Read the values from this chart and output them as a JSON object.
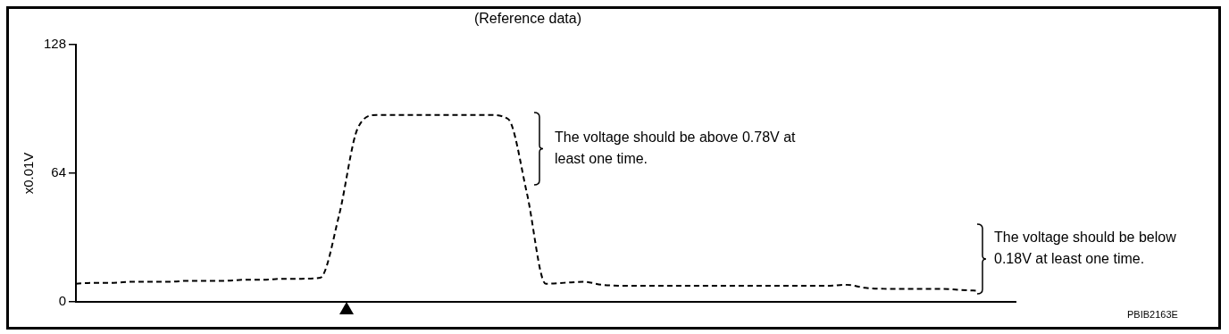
{
  "chart_data": {
    "type": "line",
    "title": "(Reference data)",
    "ylabel": "x0.01V",
    "categories": [
      null,
      null,
      null,
      null,
      null,
      null,
      null,
      null,
      null,
      null,
      null,
      null,
      null,
      null,
      null,
      null,
      null,
      null,
      null,
      null,
      null,
      null,
      null,
      null,
      null,
      null,
      null,
      null,
      null,
      null,
      null,
      null,
      null,
      null,
      null,
      null,
      null,
      null,
      null,
      null,
      null,
      null,
      null,
      null,
      null,
      null,
      null,
      null,
      null,
      null,
      null
    ],
    "series": [
      {
        "color": "#000000",
        "values": [
          9,
          9.5,
          9.5,
          10,
          10,
          10,
          10.5,
          10.5,
          10.5,
          11,
          11,
          11.5,
          11.5,
          12,
          43,
          86.5,
          93,
          93,
          93,
          93,
          93,
          93,
          93,
          91,
          54,
          9,
          9.5,
          10,
          8.5,
          8,
          8,
          8,
          8,
          8,
          8,
          8,
          8,
          8,
          8,
          8,
          8,
          8.5,
          7,
          6.5,
          6.5,
          6.5,
          6.5,
          6,
          5.5,
          null,
          null
        ]
      }
    ],
    "ylim": [
      0,
      128
    ],
    "yticks": [
      0,
      64,
      128
    ],
    "grid": false,
    "legend": false,
    "tick_labels": "y",
    "marker": "none",
    "line_style": "dashed",
    "annotations": [
      "The voltage should be above 0.78V at least one time.",
      "The voltage should be below 0.18V at least one time.",
      "PBIB2163E"
    ]
  }
}
